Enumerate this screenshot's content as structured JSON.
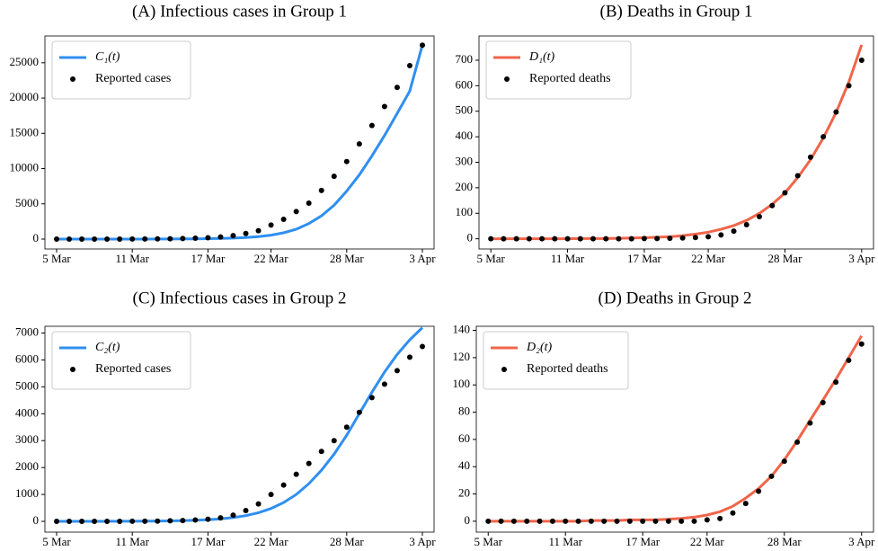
{
  "chart_data": [
    {
      "type": "line",
      "title": "(A) Infectious cases in Group 1",
      "categories": [
        "5 Mar",
        null,
        null,
        null,
        null,
        null,
        "11 Mar",
        null,
        null,
        null,
        null,
        null,
        "17 Mar",
        null,
        null,
        null,
        null,
        "22 Mar",
        null,
        null,
        null,
        null,
        null,
        "28 Mar",
        null,
        null,
        null,
        null,
        null,
        "3 Apr"
      ],
      "series": [
        {
          "name": "C₁(t)",
          "color": "#2f8ff0",
          "mark": "line",
          "values": [
            0,
            0,
            1,
            1,
            2,
            3,
            5,
            8,
            12,
            18,
            27,
            40,
            60,
            90,
            140,
            220,
            350,
            560,
            900,
            1400,
            2200,
            3300,
            4800,
            6800,
            9100,
            11800,
            14700,
            17800,
            21000,
            27500
          ]
        },
        {
          "name": "Reported cases",
          "color": "#000000",
          "mark": "dots",
          "values": [
            0,
            0,
            1,
            2,
            3,
            5,
            10,
            20,
            30,
            50,
            80,
            130,
            200,
            300,
            500,
            800,
            1200,
            2000,
            2800,
            3900,
            5100,
            6900,
            8900,
            11000,
            13500,
            16100,
            18800,
            21500,
            24600,
            27500
          ]
        }
      ],
      "ylim": [
        -1400,
        28800
      ],
      "yticks": [
        0,
        5000,
        10000,
        15000,
        20000,
        25000
      ],
      "legend": "upper left"
    },
    {
      "type": "line",
      "title": "(B) Deaths in Group 1",
      "categories": [
        "5 Mar",
        null,
        null,
        null,
        null,
        null,
        "11 Mar",
        null,
        null,
        null,
        null,
        null,
        "17 Mar",
        null,
        null,
        null,
        null,
        "22 Mar",
        null,
        null,
        null,
        null,
        null,
        "28 Mar",
        null,
        null,
        null,
        null,
        null,
        "3 Apr"
      ],
      "series": [
        {
          "name": "D₁(t)",
          "color": "#f0654a",
          "mark": "line",
          "values": [
            0,
            0,
            0,
            0,
            0,
            0,
            0,
            1,
            1,
            1,
            2,
            3,
            4,
            6,
            8,
            12,
            18,
            26,
            37,
            52,
            72,
            100,
            135,
            180,
            240,
            310,
            395,
            495,
            615,
            760
          ]
        },
        {
          "name": "Reported deaths",
          "color": "#000000",
          "mark": "dots",
          "values": [
            0,
            0,
            0,
            0,
            0,
            0,
            0,
            0,
            0,
            0,
            0,
            0,
            1,
            1,
            2,
            3,
            5,
            8,
            15,
            30,
            55,
            87,
            130,
            180,
            247,
            320,
            400,
            497,
            600,
            700
          ]
        }
      ],
      "ylim": [
        -40,
        795
      ],
      "yticks": [
        0,
        100,
        200,
        300,
        400,
        500,
        600,
        700
      ],
      "legend": "upper left"
    },
    {
      "type": "line",
      "title": "(C) Infectious cases in Group 2",
      "categories": [
        "5 Mar",
        null,
        null,
        null,
        null,
        null,
        "11 Mar",
        null,
        null,
        null,
        null,
        null,
        "17 Mar",
        null,
        null,
        null,
        null,
        "22 Mar",
        null,
        null,
        null,
        null,
        null,
        "28 Mar",
        null,
        null,
        null,
        null,
        null,
        "3 Apr"
      ],
      "series": [
        {
          "name": "C₂(t)",
          "color": "#2f8ff0",
          "mark": "line",
          "values": [
            0,
            0,
            0,
            1,
            2,
            3,
            5,
            8,
            12,
            18,
            27,
            40,
            60,
            90,
            140,
            210,
            320,
            480,
            700,
            1000,
            1400,
            1900,
            2500,
            3200,
            4000,
            4800,
            5550,
            6200,
            6750,
            7200
          ]
        },
        {
          "name": "Reported cases",
          "color": "#000000",
          "mark": "dots",
          "values": [
            0,
            0,
            0,
            0,
            1,
            2,
            3,
            5,
            10,
            20,
            30,
            50,
            80,
            130,
            230,
            400,
            650,
            1000,
            1350,
            1750,
            2150,
            2600,
            3000,
            3500,
            4050,
            4600,
            5100,
            5600,
            6100,
            6500
          ]
        }
      ],
      "ylim": [
        -400,
        7250
      ],
      "yticks": [
        0,
        1000,
        2000,
        3000,
        4000,
        5000,
        6000,
        7000
      ],
      "legend": "upper left"
    },
    {
      "type": "line",
      "title": "(D) Deaths in Group 2",
      "categories": [
        "5 Mar",
        null,
        null,
        null,
        null,
        null,
        "11 Mar",
        null,
        null,
        null,
        null,
        null,
        "17 Mar",
        null,
        null,
        null,
        null,
        "22 Mar",
        null,
        null,
        null,
        null,
        null,
        "28 Mar",
        null,
        null,
        null,
        null,
        null,
        "3 Apr"
      ],
      "series": [
        {
          "name": "D₂(t)",
          "color": "#f0654a",
          "mark": "line",
          "values": [
            0,
            0,
            0,
            0,
            0,
            0,
            0,
            0,
            0.5,
            0.5,
            0.5,
            1,
            1,
            1,
            1.5,
            2,
            3,
            4.5,
            7,
            11,
            17,
            24,
            33,
            45,
            59,
            74,
            89,
            104,
            120,
            136
          ]
        },
        {
          "name": "Reported deaths",
          "color": "#000000",
          "mark": "dots",
          "values": [
            0,
            0,
            0,
            0,
            0,
            0,
            0,
            0,
            0,
            0,
            0,
            0,
            0,
            0,
            0,
            0,
            0,
            1,
            2,
            6,
            13,
            22,
            33,
            44,
            58,
            72,
            87,
            102,
            118,
            130
          ]
        }
      ],
      "ylim": [
        -8,
        143
      ],
      "yticks": [
        0,
        20,
        40,
        60,
        80,
        100,
        120,
        140
      ],
      "legend": "upper left"
    }
  ]
}
